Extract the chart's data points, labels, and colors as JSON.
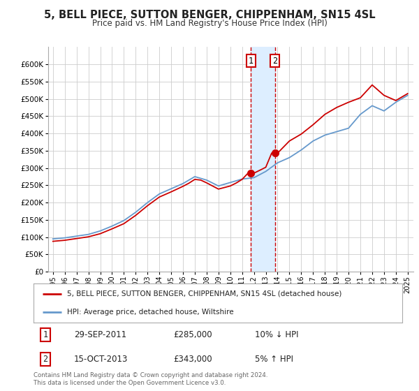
{
  "title": "5, BELL PIECE, SUTTON BENGER, CHIPPENHAM, SN15 4SL",
  "subtitle": "Price paid vs. HM Land Registry's House Price Index (HPI)",
  "legend_line1": "5, BELL PIECE, SUTTON BENGER, CHIPPENHAM, SN15 4SL (detached house)",
  "legend_line2": "HPI: Average price, detached house, Wiltshire",
  "footnote": "Contains HM Land Registry data © Crown copyright and database right 2024.\nThis data is licensed under the Open Government Licence v3.0.",
  "transaction1_date": "29-SEP-2011",
  "transaction1_price": "£285,000",
  "transaction1_hpi": "10% ↓ HPI",
  "transaction2_date": "15-OCT-2013",
  "transaction2_price": "£343,000",
  "transaction2_hpi": "5% ↑ HPI",
  "red_color": "#cc0000",
  "blue_color": "#6699cc",
  "shaded_color": "#ddeeff",
  "grid_color": "#cccccc",
  "background_color": "#ffffff",
  "ylim": [
    0,
    650000
  ],
  "yticks": [
    0,
    50000,
    100000,
    150000,
    200000,
    250000,
    300000,
    350000,
    400000,
    450000,
    500000,
    550000,
    600000
  ],
  "hpi_years": [
    1995,
    1995.5,
    1996,
    1996.5,
    1997,
    1997.5,
    1998,
    1998.5,
    1999,
    1999.5,
    2000,
    2000.5,
    2001,
    2001.5,
    2002,
    2002.5,
    2003,
    2003.5,
    2004,
    2004.5,
    2005,
    2005.5,
    2006,
    2006.5,
    2007,
    2007.5,
    2008,
    2008.5,
    2009,
    2009.5,
    2010,
    2010.5,
    2011,
    2011.5,
    2012,
    2012.5,
    2013,
    2013.5,
    2014,
    2014.5,
    2015,
    2015.5,
    2016,
    2016.5,
    2017,
    2017.5,
    2018,
    2018.5,
    2019,
    2019.5,
    2020,
    2020.5,
    2021,
    2021.5,
    2022,
    2022.5,
    2023,
    2023.5,
    2024,
    2024.5,
    2025
  ],
  "hpi_values": [
    95000,
    96500,
    98000,
    100500,
    103000,
    105500,
    108000,
    113000,
    118000,
    125000,
    132000,
    140000,
    148000,
    160000,
    172000,
    186000,
    200000,
    212500,
    225000,
    232500,
    240000,
    247500,
    255000,
    265000,
    275000,
    270000,
    265000,
    256500,
    248000,
    253000,
    258000,
    263000,
    268000,
    270000,
    272000,
    281000,
    290000,
    302500,
    315000,
    322500,
    330000,
    341000,
    352000,
    365000,
    378000,
    386500,
    395000,
    400000,
    405000,
    410000,
    415000,
    435000,
    455000,
    467500,
    480000,
    472500,
    465000,
    477500,
    490000,
    500000,
    510000
  ],
  "prop_years": [
    1995,
    1995.5,
    1996,
    1996.5,
    1997,
    1997.5,
    1998,
    1998.5,
    1999,
    1999.5,
    2000,
    2000.5,
    2001,
    2001.5,
    2002,
    2002.5,
    2003,
    2003.5,
    2004,
    2004.5,
    2005,
    2005.5,
    2006,
    2006.5,
    2007,
    2007.5,
    2008,
    2008.5,
    2009,
    2009.5,
    2010,
    2010.5,
    2011,
    2011.5,
    2012,
    2012.5,
    2013,
    2013.5,
    2014,
    2014.5,
    2015,
    2015.5,
    2016,
    2016.5,
    2017,
    2017.5,
    2018,
    2018.5,
    2019,
    2019.5,
    2020,
    2020.5,
    2021,
    2021.5,
    2022,
    2022.5,
    2023,
    2023.5,
    2024,
    2024.5,
    2025
  ],
  "prop_values": [
    88000,
    89500,
    91000,
    93500,
    96000,
    98500,
    101000,
    105500,
    110000,
    117000,
    124000,
    131500,
    139000,
    151000,
    163000,
    177000,
    191000,
    203500,
    216000,
    223500,
    231000,
    239000,
    247000,
    256000,
    267000,
    265000,
    257000,
    248000,
    239000,
    243500,
    248000,
    256500,
    267000,
    285000,
    285000,
    293500,
    302000,
    343000,
    343000,
    360500,
    378000,
    388000,
    398000,
    411500,
    425000,
    440000,
    455000,
    465000,
    475000,
    482500,
    490000,
    496500,
    503000,
    521500,
    540000,
    525000,
    510000,
    502500,
    495000,
    505000,
    515000
  ],
  "marker1_x": 2011.75,
  "marker1_y": 285000,
  "marker2_x": 2013.79,
  "marker2_y": 343000,
  "shade_x1": 2011.75,
  "shade_x2": 2013.79,
  "xtick_years": [
    1995,
    1996,
    1997,
    1998,
    1999,
    2000,
    2001,
    2002,
    2003,
    2004,
    2005,
    2006,
    2007,
    2008,
    2009,
    2010,
    2011,
    2012,
    2013,
    2014,
    2015,
    2016,
    2017,
    2018,
    2019,
    2020,
    2021,
    2022,
    2023,
    2024,
    2025
  ],
  "xtick_labels": [
    "1995",
    "1996",
    "1997",
    "1998",
    "1999",
    "2000",
    "2001",
    "2002",
    "2003",
    "2004",
    "2005",
    "2006",
    "2007",
    "2008",
    "2009",
    "2010",
    "2011",
    "2012",
    "2013",
    "2014",
    "2015",
    "2016",
    "2017",
    "2018",
    "2019",
    "2020",
    "2021",
    "2022",
    "2023",
    "2024",
    "2025"
  ]
}
